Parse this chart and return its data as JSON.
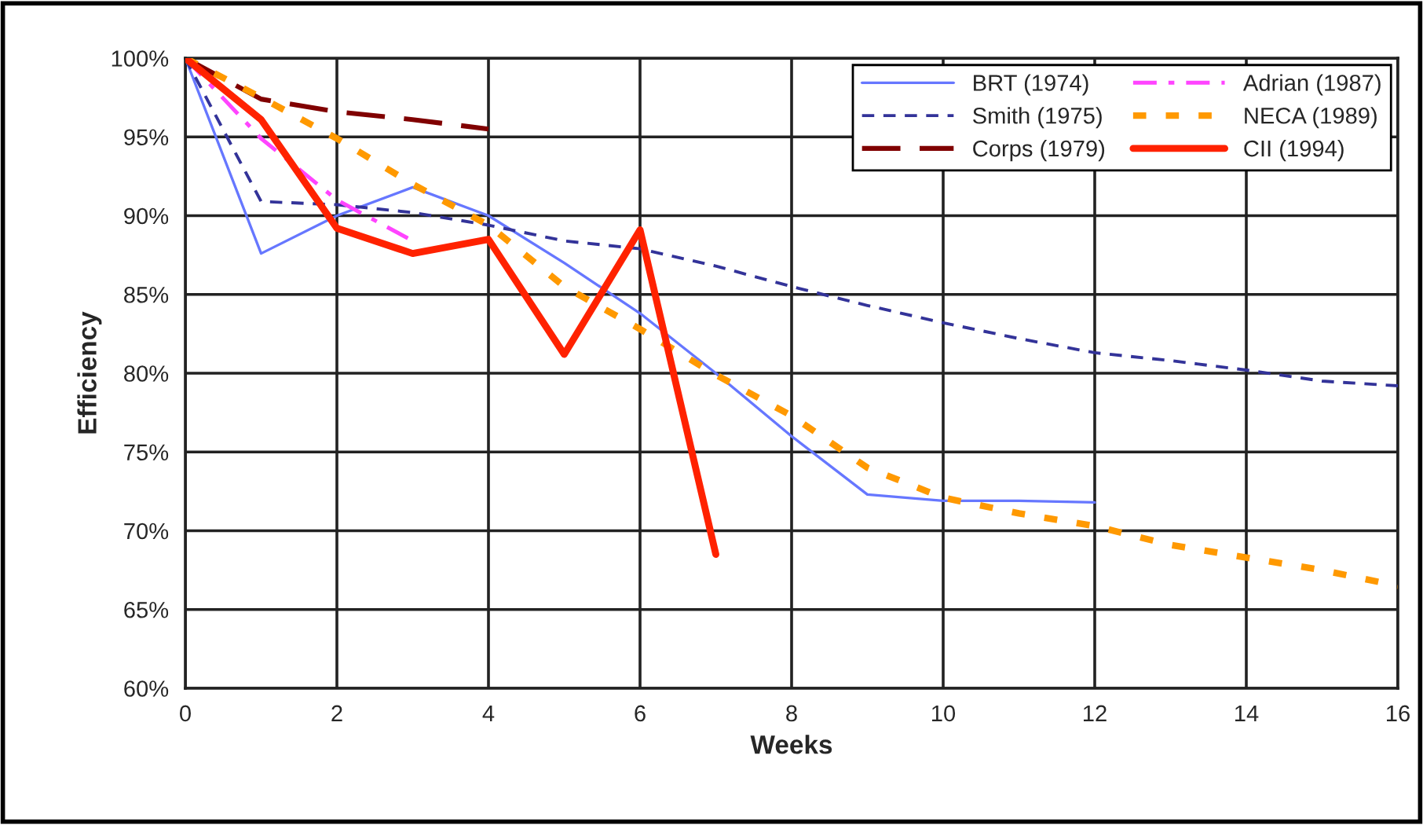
{
  "chart_data": {
    "type": "line",
    "xlabel": "Weeks",
    "ylabel": "Efficiency",
    "xlim": [
      0,
      16
    ],
    "xticks": [
      0,
      2,
      4,
      6,
      8,
      10,
      12,
      14,
      16
    ],
    "ylim": [
      60,
      100
    ],
    "yticks": [
      {
        "value": 60,
        "label": "60%"
      },
      {
        "value": 65,
        "label": "65%"
      },
      {
        "value": 70,
        "label": "70%"
      },
      {
        "value": 75,
        "label": "75%"
      },
      {
        "value": 80,
        "label": "80%"
      },
      {
        "value": 85,
        "label": "85%"
      },
      {
        "value": 90,
        "label": "90%"
      },
      {
        "value": 95,
        "label": "95%"
      },
      {
        "value": 100,
        "label": "100%"
      }
    ],
    "grid": true,
    "legend": "top right",
    "marker": "none",
    "series": [
      {
        "name": "BRT (1974)",
        "color": "#6677ff",
        "line_style": "solid",
        "x": [
          0,
          1,
          2,
          3,
          4,
          5,
          6,
          7,
          8,
          9,
          10,
          11,
          12
        ],
        "values": [
          100,
          87.6,
          90,
          91.8,
          90,
          87,
          83.8,
          80,
          76,
          72.3,
          71.9,
          71.9,
          71.8
        ]
      },
      {
        "name": "Smith (1975)",
        "color": "#333399",
        "line_style": "dashed",
        "x": [
          0,
          1,
          2,
          3,
          4,
          5,
          6,
          7,
          8,
          9,
          10,
          11,
          12,
          13,
          14,
          15,
          16
        ],
        "values": [
          100,
          90.9,
          90.7,
          90.2,
          89.4,
          88.4,
          87.9,
          86.8,
          85.5,
          84.3,
          83.2,
          82.2,
          81.3,
          80.8,
          80.2,
          79.5,
          79.2
        ]
      },
      {
        "name": "Corps (1979)",
        "color": "#800000",
        "line_style": "dashed",
        "x": [
          0,
          1,
          2,
          3,
          4
        ],
        "values": [
          100,
          97.4,
          96.6,
          96.1,
          95.5
        ]
      },
      {
        "name": "Adrian (1987)",
        "color": "#ff44ff",
        "line_style": "dashdot",
        "x": [
          0,
          1,
          2,
          3
        ],
        "values": [
          100,
          94.9,
          91,
          88.4
        ]
      },
      {
        "name": "NECA (1989)",
        "color": "#ff9900",
        "line_style": "dotted",
        "x": [
          0,
          1,
          2,
          3,
          4,
          5,
          6,
          7,
          8,
          9,
          10,
          11,
          12,
          13,
          14,
          15,
          16
        ],
        "values": [
          100,
          97.5,
          94.9,
          92,
          89.4,
          85.5,
          82.8,
          79.9,
          77.3,
          74,
          72.1,
          71.1,
          70.3,
          69.1,
          68.3,
          67.5,
          66.5
        ]
      },
      {
        "name": "CII (1994)",
        "color": "#ff2200",
        "line_style": "solid",
        "x": [
          0,
          1,
          2,
          3,
          4,
          5,
          6,
          7
        ],
        "values": [
          100,
          96.1,
          89.2,
          87.6,
          88.5,
          81.2,
          89.1,
          68.5
        ]
      }
    ]
  }
}
